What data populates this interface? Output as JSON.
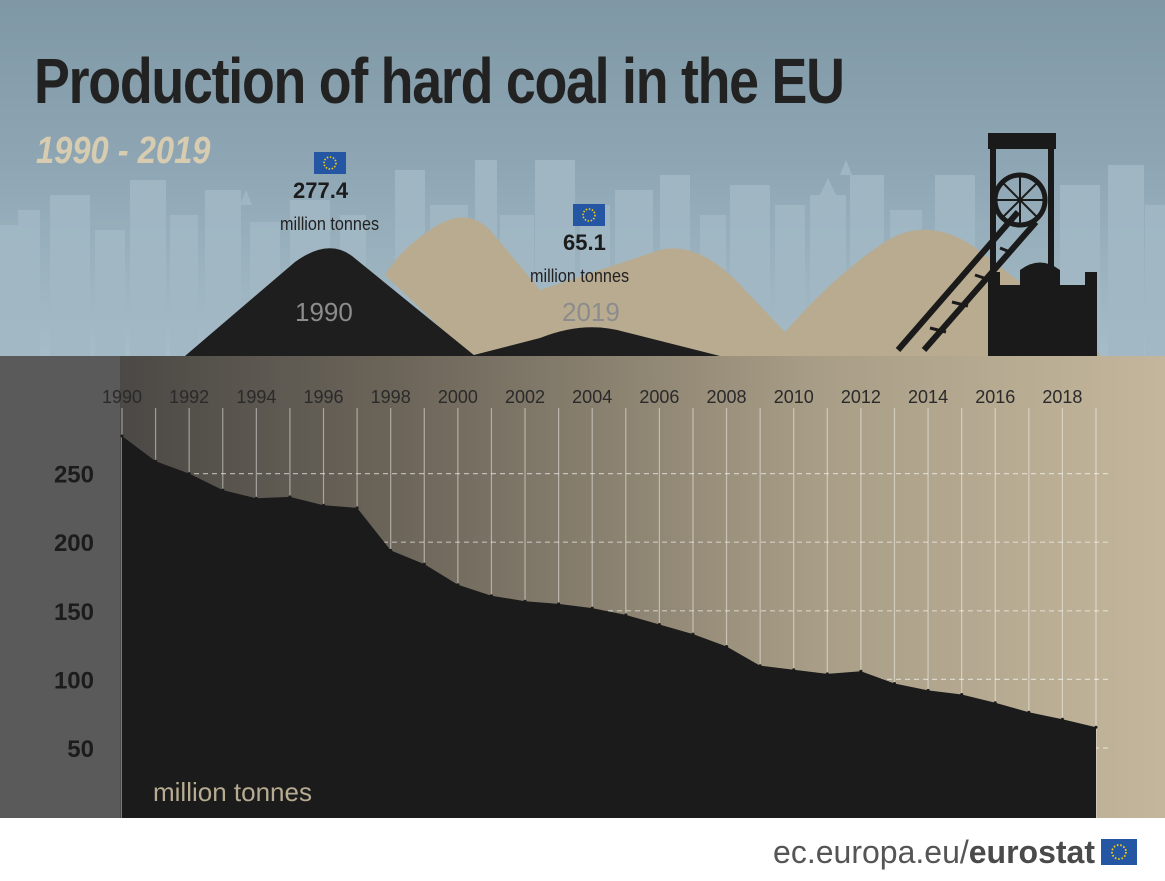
{
  "header": {
    "title": "Production of hard coal in the EU",
    "subtitle": "1990 - 2019"
  },
  "peaks": {
    "first": {
      "value": "277.4",
      "unit": "million tonnes",
      "year": "1990"
    },
    "last": {
      "value": "65.1",
      "unit": "million tonnes",
      "year": "2019"
    }
  },
  "footer": {
    "domain": "ec.europa.eu/",
    "brand": "eurostat"
  },
  "colors": {
    "coal": "#1a1a1a",
    "sand": "#b8ab90",
    "sky": "#8ea6b4",
    "eu_blue": "#2456a4",
    "eu_gold": "#f5d10a"
  },
  "icons": [
    "eu-flag-icon",
    "mine-headframe-icon"
  ],
  "chart_data": {
    "type": "area",
    "title": "Production of hard coal in the EU",
    "subtitle": "1990 - 2019",
    "unit_label": "million tonnes",
    "x": [
      1990,
      1991,
      1992,
      1993,
      1994,
      1995,
      1996,
      1997,
      1998,
      1999,
      2000,
      2001,
      2002,
      2003,
      2004,
      2005,
      2006,
      2007,
      2008,
      2009,
      2010,
      2011,
      2012,
      2013,
      2014,
      2015,
      2016,
      2017,
      2018,
      2019
    ],
    "values": [
      277.4,
      259,
      250,
      238,
      232,
      233,
      227,
      225,
      194,
      184,
      169,
      161,
      157,
      155,
      152,
      147,
      140,
      133,
      124,
      110,
      107,
      104,
      106,
      97,
      92,
      89,
      83,
      76,
      71,
      65.1
    ],
    "x_ticks": [
      "1990",
      "1992",
      "1994",
      "1996",
      "1998",
      "2000",
      "2002",
      "2004",
      "2006",
      "2008",
      "2010",
      "2012",
      "2014",
      "2016",
      "2018"
    ],
    "y_ticks": [
      50,
      100,
      150,
      200,
      250
    ],
    "xlim": [
      1990,
      2019
    ],
    "ylim": [
      0,
      277.4
    ],
    "x_axis_position": "top",
    "grid": true
  }
}
